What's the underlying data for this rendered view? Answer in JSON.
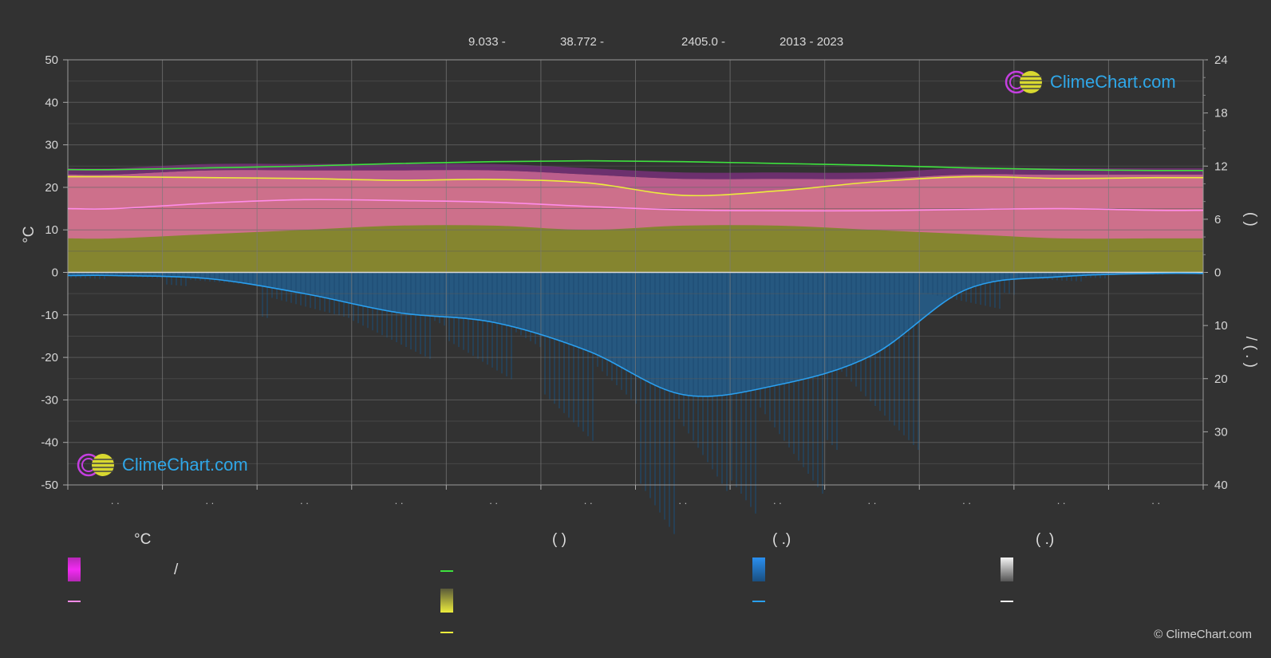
{
  "header": {
    "latitude": "9.033 -",
    "longitude": "38.772 -",
    "elevation": "2405.0 -",
    "period": "2013 - 2023"
  },
  "axes": {
    "left_label": "°C",
    "right_label_sun": "(   )",
    "right_label_rain": "/   (  .  )"
  },
  "legend": {
    "col1_header": "°C",
    "col1_item1": "/",
    "col2_header": "(          )",
    "col3_header": "(   .)",
    "col4_header": "(   .)"
  },
  "copyright": "© ClimeChart.com",
  "logo_text": "ClimeChart.com",
  "colors": {
    "background": "#323232",
    "temp_band": "#e26aa5",
    "sun_band": "#9b9b34",
    "daylight_line": "#3ee23e",
    "sunshine_line": "#ecec3c",
    "temp_mean_line": "#ff8ce8",
    "rain_band": "#2a6a9c",
    "rain_line": "#2aa0f0"
  },
  "chart_data": {
    "type": "line",
    "x_months": [
      1,
      2,
      3,
      4,
      5,
      6,
      7,
      8,
      9,
      10,
      11,
      12
    ],
    "month_labels": [
      ". .",
      ". .",
      ". .",
      ". .",
      ". .",
      ". .",
      ". .",
      ". .",
      ". .",
      ". .",
      ". .",
      ". ."
    ],
    "left_axis": {
      "unit": "°C",
      "ylim": [
        -50,
        50
      ],
      "ticks": [
        50,
        40,
        30,
        20,
        10,
        0,
        -10,
        -20,
        -30,
        -40,
        -50
      ]
    },
    "right_axis_top": {
      "unit": "hours",
      "ylim": [
        0,
        24
      ],
      "ticks": [
        24,
        18,
        12,
        6,
        0
      ]
    },
    "right_axis_bottom": {
      "unit": "mm",
      "ylim": [
        0,
        40
      ],
      "ticks": [
        0,
        10,
        20,
        30,
        40
      ]
    },
    "grid": true,
    "series": [
      {
        "type": "line",
        "axis": "hours",
        "color": "#3ee23e",
        "x": [
          1,
          2,
          3,
          4,
          5,
          6,
          7,
          8,
          9,
          10,
          11,
          12
        ],
        "values": [
          11.6,
          11.8,
          12.0,
          12.3,
          12.5,
          12.6,
          12.5,
          12.3,
          12.1,
          11.8,
          11.6,
          11.5
        ]
      },
      {
        "type": "line",
        "axis": "hours",
        "color": "#ecec3c",
        "x": [
          1,
          2,
          3,
          4,
          5,
          6,
          7,
          8,
          9,
          10,
          11,
          12
        ],
        "values": [
          10.8,
          10.7,
          10.6,
          10.4,
          10.5,
          10.1,
          8.7,
          9.2,
          10.2,
          10.8,
          10.6,
          10.7
        ]
      },
      {
        "type": "line",
        "axis": "temp",
        "color": "#ff8ce8",
        "x": [
          1,
          2,
          3,
          4,
          5,
          6,
          7,
          8,
          9,
          10,
          11,
          12
        ],
        "values": [
          15.0,
          16.3,
          17.1,
          16.9,
          16.5,
          15.5,
          14.7,
          14.5,
          14.5,
          14.8,
          15.0,
          14.6
        ]
      },
      {
        "type": "band",
        "axis": "temp",
        "color": "#e26aa5",
        "x": [
          1,
          2,
          3,
          4,
          5,
          6,
          7,
          8,
          9,
          10,
          11,
          12
        ],
        "low": [
          8,
          9,
          10,
          11,
          11,
          10,
          11,
          11,
          10,
          9,
          8,
          8
        ],
        "high": [
          23,
          24,
          24,
          24,
          24,
          23,
          22,
          22,
          22,
          23,
          23,
          23
        ]
      },
      {
        "type": "line",
        "axis": "mm",
        "color": "#2aa0f0",
        "x": [
          1,
          2,
          3,
          4,
          5,
          6,
          7,
          8,
          9,
          10,
          11,
          12
        ],
        "values": [
          0.6,
          1.2,
          4.0,
          7.6,
          9.4,
          14.8,
          23.0,
          21.2,
          15.6,
          3.2,
          0.8,
          0.2
        ]
      }
    ]
  }
}
